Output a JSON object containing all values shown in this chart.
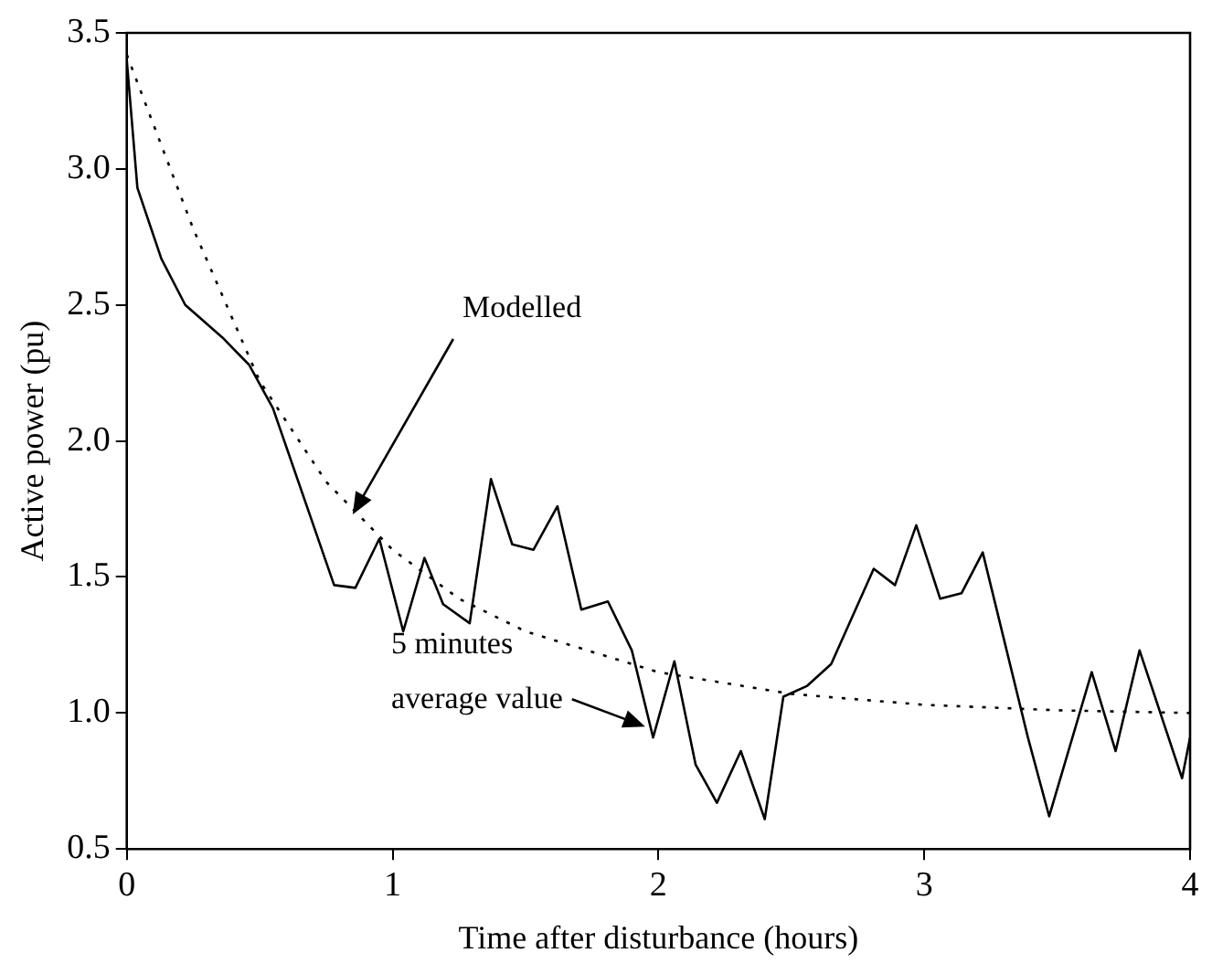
{
  "chart_data": {
    "type": "line",
    "xlabel": "Time after disturbance (hours)",
    "ylabel": "Active power (pu)",
    "xlim": [
      0,
      4
    ],
    "xticks": [
      0,
      1,
      2,
      3,
      4
    ],
    "ylim": [
      0.5,
      3.5
    ],
    "yticks": [
      0.5,
      {
        "value": 1,
        "label": "1.0"
      },
      1.5,
      {
        "value": 2,
        "label": "2.0"
      },
      2.5,
      {
        "value": 3,
        "label": "3.0"
      },
      3.5
    ],
    "grid": false,
    "legend": false,
    "marker": "none",
    "series": [
      {
        "color": "#000000",
        "line_style": "solid",
        "x": [
          0,
          0.04,
          0.13,
          0.22,
          0.36,
          0.46,
          0.55,
          0.78,
          0.86,
          0.95,
          1.04,
          1.12,
          1.19,
          1.29,
          1.37,
          1.45,
          1.53,
          1.62,
          1.71,
          1.81,
          1.9,
          1.98,
          2.06,
          2.14,
          2.22,
          2.31,
          2.4,
          2.47,
          2.56,
          2.65,
          2.81,
          2.89,
          2.97,
          3.06,
          3.14,
          3.22,
          3.39,
          3.47,
          3.63,
          3.72,
          3.81,
          3.97,
          4
        ],
        "values": [
          3.4,
          2.93,
          2.67,
          2.5,
          2.38,
          2.28,
          2.12,
          1.47,
          1.46,
          1.64,
          1.3,
          1.57,
          1.4,
          1.33,
          1.86,
          1.62,
          1.6,
          1.76,
          1.38,
          1.41,
          1.23,
          0.91,
          1.19,
          0.81,
          0.67,
          0.86,
          0.61,
          1.06,
          1.1,
          1.18,
          1.53,
          1.47,
          1.69,
          1.42,
          1.44,
          1.59,
          0.91,
          0.62,
          1.15,
          0.86,
          1.23,
          0.76,
          0.91
        ]
      },
      {
        "color": "#000000",
        "line_style": "dotted",
        "x": [
          0,
          0.25,
          0.5,
          0.75,
          1,
          1.25,
          1.5,
          2,
          2.5,
          3,
          3.5,
          4
        ],
        "values": [
          3.42,
          2.78,
          2.22,
          1.85,
          1.6,
          1.42,
          1.3,
          1.15,
          1.07,
          1.03,
          1.01,
          1
        ]
      }
    ],
    "annotations": [
      {
        "text": "Modelled",
        "x": 0.85,
        "y": 1.73
      },
      {
        "text": "5 minutes\naverage value",
        "x": 1.95,
        "y": 0.95
      }
    ]
  }
}
